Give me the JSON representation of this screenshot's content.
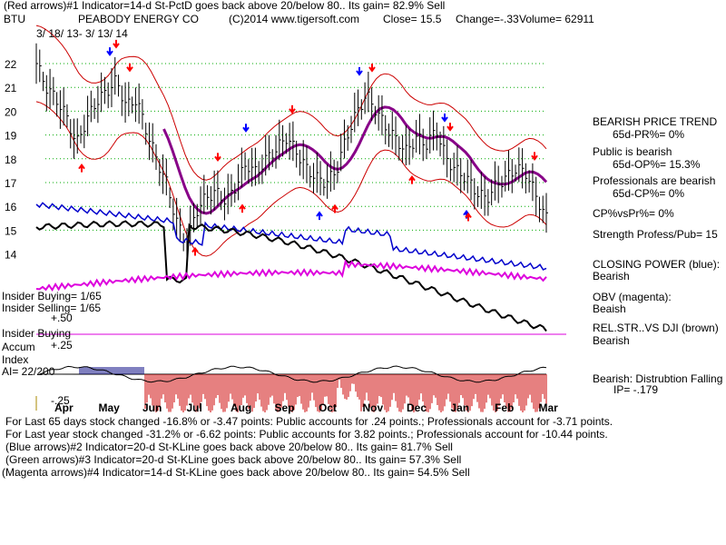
{
  "header": {
    "line1": "(Red arrows)#1 Indicator=14-d St-PctD goes back above 20/below 80.. Its gain= 82.9% Sell",
    "ticker": "BTU",
    "company": "PEABODY ENERGY CO",
    "copyright": "(C)2014 www.tigersoft.com",
    "close": "Close=  15.5",
    "change": "Change=-.33",
    "volume": "Volume=  62911",
    "date_range": "3/ 18/ 13-  3/ 13/ 14"
  },
  "right_panel": {
    "trend_title": "BEARISH PRICE TREND",
    "pr": "65d-PR%= 0%",
    "public_label": "Public is bearish",
    "op": "65d-OP%= 15.3%",
    "pro_label": "Professionals are bearish",
    "cp": "65d-CP%= 0%",
    "cpvspr": "CP%vsPr%=  0%",
    "strength": "Strength Profess/Pub= 15",
    "closing_power": "CLOSING POWER (blue):",
    "closing_power_val": "Bearish",
    "obv": "OBV (magenta):",
    "obv_val": "Beaish",
    "relstr": "REL.STR..VS DJI (brown)",
    "relstr_val": "Bearish",
    "distribution": "Bearish:  Distrubtion Falling",
    "ip": "IP= -.179"
  },
  "left_panel": {
    "insider_buying_ratio": "Insider Buying= 1/65",
    "insider_selling_ratio": "Insider Selling= 1/65",
    "plus50": "+.50",
    "insider_buying": "Insider Buying",
    "accum": "Accum",
    "plus25": "+.25",
    "index": "Index",
    "ai": "AI= 22/200",
    "minus25": "-.25"
  },
  "footer": {
    "line1": "For Last 65 days stock changed -16.8% or -3.47 points:  Public accounts for  .24 points.;  Professionals account for -3.71 points.",
    "line2": "For Last year stock changed -31.2% or -6.62 points:  Public accounts for  3.82 points.;  Professionals account for -10.44 points.",
    "line3": "(Blue arrows)#2 Indicator=20-d St-KLine goes back above 20/below 80.. Its gain= 81.7% Sell",
    "line4": "(Green arrows)#3 Indicator=20-d St-KLine goes back above 20/below 80.. Its gain= 57.3% Sell",
    "line5": "(Magenta arrows)#4 Indicator=14-d St-KLine goes back above 20/below 80.. Its gain= 54.5% Sell"
  },
  "colors": {
    "price": "#000000",
    "closing_power": "#0000cc",
    "obv": "#dd00dd",
    "band": "#cc0000",
    "ma": "#880088",
    "grid": "#00aa00",
    "accum_pos": "#000080",
    "accum_neg": "#cc0000"
  },
  "chart_data": {
    "type": "line",
    "y_ticks": [
      "22",
      "21",
      "20",
      "19",
      "18",
      "17",
      "16",
      "15",
      "14"
    ],
    "ylim": [
      13.3,
      22.5
    ],
    "x_ticks": [
      "Apr",
      "May",
      "Jun",
      "Jul",
      "Aug",
      "Sep",
      "Oct",
      "Nov",
      "Dec",
      "Jan",
      "Feb",
      "Mar"
    ],
    "price": [
      [
        "3/18",
        22.0
      ],
      [
        "3/25",
        21.0
      ],
      [
        "4/1",
        20.5
      ],
      [
        "4/8",
        19.8
      ],
      [
        "4/15",
        18.6
      ],
      [
        "4/22",
        19.6
      ],
      [
        "4/29",
        20.4
      ],
      [
        "5/6",
        20.8
      ],
      [
        "5/13",
        21.3
      ],
      [
        "5/20",
        20.2
      ],
      [
        "5/27",
        20.5
      ],
      [
        "6/3",
        19.2
      ],
      [
        "6/10",
        18.0
      ],
      [
        "6/17",
        17.0
      ],
      [
        "6/24",
        15.4
      ],
      [
        "7/1",
        14.4
      ],
      [
        "7/8",
        15.8
      ],
      [
        "7/15",
        16.4
      ],
      [
        "7/22",
        16.6
      ],
      [
        "7/29",
        16.2
      ],
      [
        "8/5",
        16.9
      ],
      [
        "8/12",
        17.8
      ],
      [
        "8/19",
        17.4
      ],
      [
        "8/26",
        18.0
      ],
      [
        "9/2",
        18.4
      ],
      [
        "9/9",
        18.9
      ],
      [
        "9/16",
        18.3
      ],
      [
        "9/23",
        17.6
      ],
      [
        "9/30",
        17.2
      ],
      [
        "10/7",
        17.0
      ],
      [
        "10/14",
        17.5
      ],
      [
        "10/21",
        18.9
      ],
      [
        "10/28",
        19.9
      ],
      [
        "11/4",
        20.7
      ],
      [
        "11/11",
        20.0
      ],
      [
        "11/18",
        19.3
      ],
      [
        "11/25",
        18.8
      ],
      [
        "12/2",
        18.3
      ],
      [
        "12/9",
        18.9
      ],
      [
        "12/16",
        18.6
      ],
      [
        "12/23",
        19.2
      ],
      [
        "12/30",
        18.0
      ],
      [
        "1/6",
        17.5
      ],
      [
        "1/13",
        17.2
      ],
      [
        "1/20",
        16.6
      ],
      [
        "1/27",
        16.3
      ],
      [
        "2/3",
        16.9
      ],
      [
        "2/10",
        17.2
      ],
      [
        "2/17",
        17.6
      ],
      [
        "2/24",
        17.4
      ],
      [
        "3/3",
        16.4
      ],
      [
        "3/13",
        15.5
      ]
    ],
    "series": [
      {
        "name": "CLOSING POWER (blue)"
      },
      {
        "name": "OBV (magenta)"
      },
      {
        "name": "REL.STR..VS DJI (brown)"
      }
    ]
  }
}
